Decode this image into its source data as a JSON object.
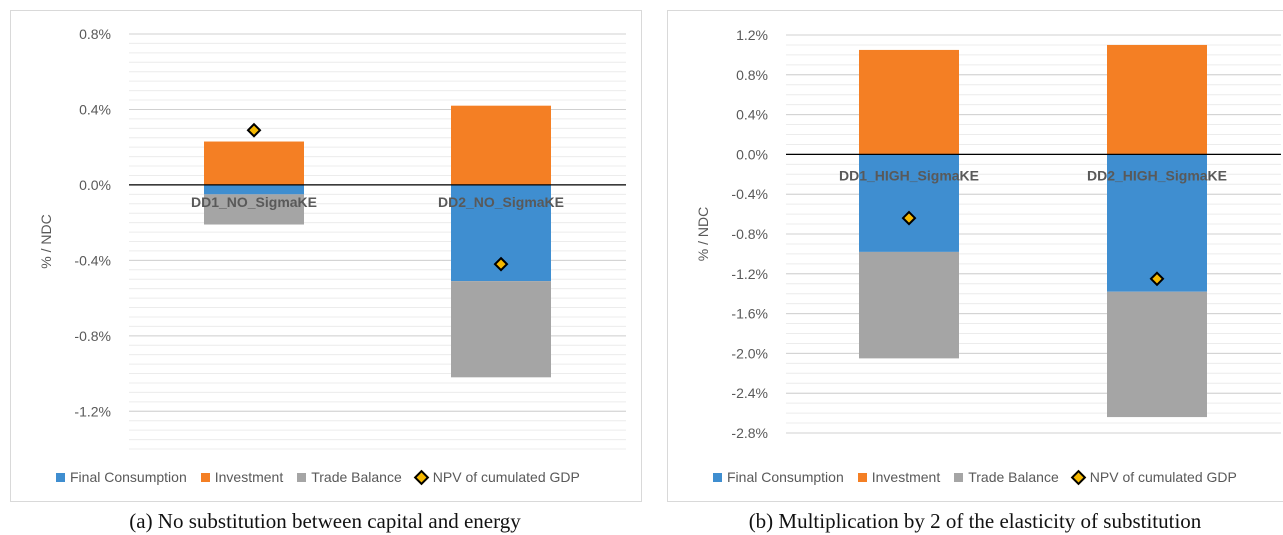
{
  "chart_data": [
    {
      "type": "bar",
      "stacked": true,
      "ylabel": "% / NDC",
      "ylim": [
        -1.4,
        0.8
      ],
      "yticks": [
        0.8,
        0.4,
        0.0,
        -0.4,
        -0.8,
        -1.2
      ],
      "ytick_labels": [
        "0.8%",
        "0.4%",
        "0.0%",
        "-0.4%",
        "-0.8%",
        "-1.2%"
      ],
      "grid": true,
      "legend_position": "bottom",
      "categories": [
        "DD1_NO_SigmaKE",
        "DD2_NO_SigmaKE"
      ],
      "series": [
        {
          "name": "Final Consumption",
          "color": "#3f8ed0",
          "values": [
            -0.05,
            -0.51
          ]
        },
        {
          "name": "Investment",
          "color": "#f47f24",
          "values": [
            0.23,
            0.42
          ]
        },
        {
          "name": "Trade Balance",
          "color": "#a5a5a5",
          "values": [
            -0.16,
            -0.51
          ]
        }
      ],
      "markers": {
        "name": "NPV of cumulated GDP",
        "color": "#f5b800",
        "values": [
          0.29,
          -0.42
        ]
      }
    },
    {
      "type": "bar",
      "stacked": true,
      "ylabel": "% / NDC",
      "ylim": [
        -2.8,
        1.2
      ],
      "yticks": [
        1.2,
        0.8,
        0.4,
        0.0,
        -0.4,
        -0.8,
        -1.2,
        -1.6,
        -2.0,
        -2.4,
        -2.8
      ],
      "ytick_labels": [
        "1.2%",
        "0.8%",
        "0.4%",
        "0.0%",
        "-0.4%",
        "-0.8%",
        "-1.2%",
        "-1.6%",
        "-2.0%",
        "-2.4%",
        "-2.8%"
      ],
      "grid": true,
      "legend_position": "bottom",
      "categories": [
        "DD1_HIGH_SigmaKE",
        "DD2_HIGH_SigmaKE"
      ],
      "series": [
        {
          "name": "Final Consumption",
          "color": "#3f8ed0",
          "values": [
            -0.98,
            -1.38
          ]
        },
        {
          "name": "Investment",
          "color": "#f47f24",
          "values": [
            1.05,
            1.1
          ]
        },
        {
          "name": "Trade Balance",
          "color": "#a5a5a5",
          "values": [
            -1.07,
            -1.26
          ]
        }
      ],
      "markers": {
        "name": "NPV of cumulated GDP",
        "color": "#f5b800",
        "values": [
          -0.64,
          -1.25
        ]
      }
    }
  ],
  "captions": {
    "a": "(a) No substitution between capital and energy",
    "b": "(b) Multiplication by 2 of the elasticity of substitution"
  }
}
